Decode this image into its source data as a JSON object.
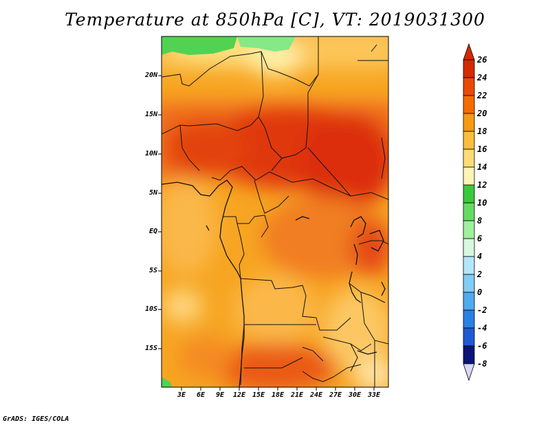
{
  "title": "Temperature at 850hPa [C], VT: 2019031300",
  "credit": "GrADS: IGES/COLA",
  "map": {
    "lat_labels": [
      "20N",
      "15N",
      "10N",
      "5N",
      "EQ",
      "5S",
      "10S",
      "15S"
    ],
    "lon_labels": [
      "3E",
      "6E",
      "9E",
      "12E",
      "15E",
      "18E",
      "21E",
      "24E",
      "27E",
      "30E",
      "33E"
    ]
  },
  "colorbar": {
    "labels": [
      "26",
      "24",
      "22",
      "20",
      "18",
      "16",
      "14",
      "12",
      "10",
      "8",
      "6",
      "4",
      "2",
      "0",
      "-2",
      "-4",
      "-6",
      "-8"
    ],
    "colors": [
      "#d42a00",
      "#ea4a00",
      "#f56c00",
      "#f79a12",
      "#fbbd3b",
      "#fedc75",
      "#fff4b4",
      "#3cc83c",
      "#64dc64",
      "#9ff09f",
      "#d8f8e0",
      "#b4e6fa",
      "#82cdf5",
      "#50aaf0",
      "#2880e6",
      "#1e5ad2",
      "#143cb4",
      "#0a1478"
    ]
  }
}
